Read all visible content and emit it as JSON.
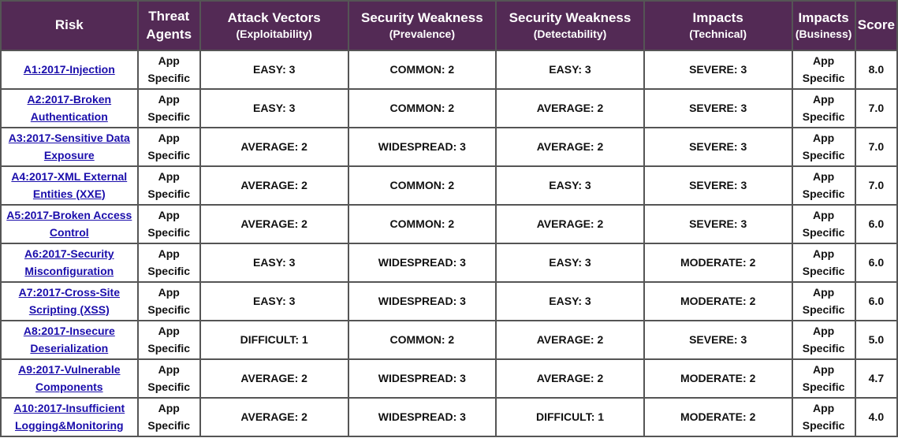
{
  "headers": {
    "risk": "Risk",
    "threat_agents": [
      "Threat",
      "Agents"
    ],
    "attack_vectors": [
      "Attack Vectors",
      "(Exploitability)"
    ],
    "prevalence": [
      "Security Weakness",
      "(Prevalence)"
    ],
    "detectability": [
      "Security Weakness",
      "(Detectability)"
    ],
    "technical": [
      "Impacts",
      "(Technical)"
    ],
    "business": [
      "Impacts",
      "(Business)"
    ],
    "score": "Score"
  },
  "colors": {
    "header_bg": "#532a55",
    "level_3": "#ff0000",
    "level_2": "#ffb000",
    "level_1": "#ffff00"
  },
  "rows": [
    {
      "risk": [
        "A1:2017-Injection",
        ""
      ],
      "agents": [
        "App",
        "Specific"
      ],
      "exploitability": "EASY: 3",
      "prevalence": "COMMON: 2",
      "detectability": "EASY: 3",
      "technical": "SEVERE: 3",
      "business": [
        "App",
        "Specific"
      ],
      "score": "8.0"
    },
    {
      "risk": [
        "A2:2017-Broken",
        "Authentication"
      ],
      "agents": [
        "App",
        "Specific"
      ],
      "exploitability": "EASY: 3",
      "prevalence": "COMMON: 2",
      "detectability": "AVERAGE: 2",
      "technical": "SEVERE: 3",
      "business": [
        "App",
        "Specific"
      ],
      "score": "7.0"
    },
    {
      "risk": [
        "A3:2017-Sensitive Data",
        "Exposure"
      ],
      "agents": [
        "App",
        "Specific"
      ],
      "exploitability": "AVERAGE: 2",
      "prevalence": "WIDESPREAD: 3",
      "detectability": "AVERAGE: 2",
      "technical": "SEVERE: 3",
      "business": [
        "App",
        "Specific"
      ],
      "score": "7.0"
    },
    {
      "risk": [
        "A4:2017-XML External",
        "Entities (XXE)"
      ],
      "agents": [
        "App",
        "Specific"
      ],
      "exploitability": "AVERAGE: 2",
      "prevalence": "COMMON: 2",
      "detectability": "EASY: 3",
      "technical": "SEVERE: 3",
      "business": [
        "App",
        "Specific"
      ],
      "score": "7.0"
    },
    {
      "risk": [
        "A5:2017-Broken Access",
        "Control"
      ],
      "agents": [
        "App",
        "Specific"
      ],
      "exploitability": "AVERAGE: 2",
      "prevalence": "COMMON: 2",
      "detectability": "AVERAGE: 2",
      "technical": "SEVERE: 3",
      "business": [
        "App",
        "Specific"
      ],
      "score": "6.0"
    },
    {
      "risk": [
        "A6:2017-Security",
        "Misconfiguration"
      ],
      "agents": [
        "App",
        "Specific"
      ],
      "exploitability": "EASY: 3",
      "prevalence": "WIDESPREAD: 3",
      "detectability": "EASY: 3",
      "technical": "MODERATE: 2",
      "business": [
        "App",
        "Specific"
      ],
      "score": "6.0"
    },
    {
      "risk": [
        "A7:2017-Cross-Site",
        "Scripting (XSS)"
      ],
      "agents": [
        "App",
        "Specific"
      ],
      "exploitability": "EASY: 3",
      "prevalence": "WIDESPREAD: 3",
      "detectability": "EASY: 3",
      "technical": "MODERATE: 2",
      "business": [
        "App",
        "Specific"
      ],
      "score": "6.0"
    },
    {
      "risk": [
        "A8:2017-Insecure",
        "Deserialization"
      ],
      "agents": [
        "App",
        "Specific"
      ],
      "exploitability": "DIFFICULT: 1",
      "prevalence": "COMMON: 2",
      "detectability": "AVERAGE: 2",
      "technical": "SEVERE: 3",
      "business": [
        "App",
        "Specific"
      ],
      "score": "5.0"
    },
    {
      "risk": [
        "A9:2017-Vulnerable",
        "Components"
      ],
      "agents": [
        "App",
        "Specific"
      ],
      "exploitability": "AVERAGE: 2",
      "prevalence": "WIDESPREAD: 3",
      "detectability": "AVERAGE: 2",
      "technical": "MODERATE: 2",
      "business": [
        "App",
        "Specific"
      ],
      "score": "4.7"
    },
    {
      "risk": [
        "A10:2017-Insufficient",
        "Logging&Monitoring"
      ],
      "agents": [
        "App",
        "Specific"
      ],
      "exploitability": "AVERAGE: 2",
      "prevalence": "WIDESPREAD: 3",
      "detectability": "DIFFICULT: 1",
      "technical": "MODERATE: 2",
      "business": [
        "App",
        "Specific"
      ],
      "score": "4.0"
    }
  ]
}
